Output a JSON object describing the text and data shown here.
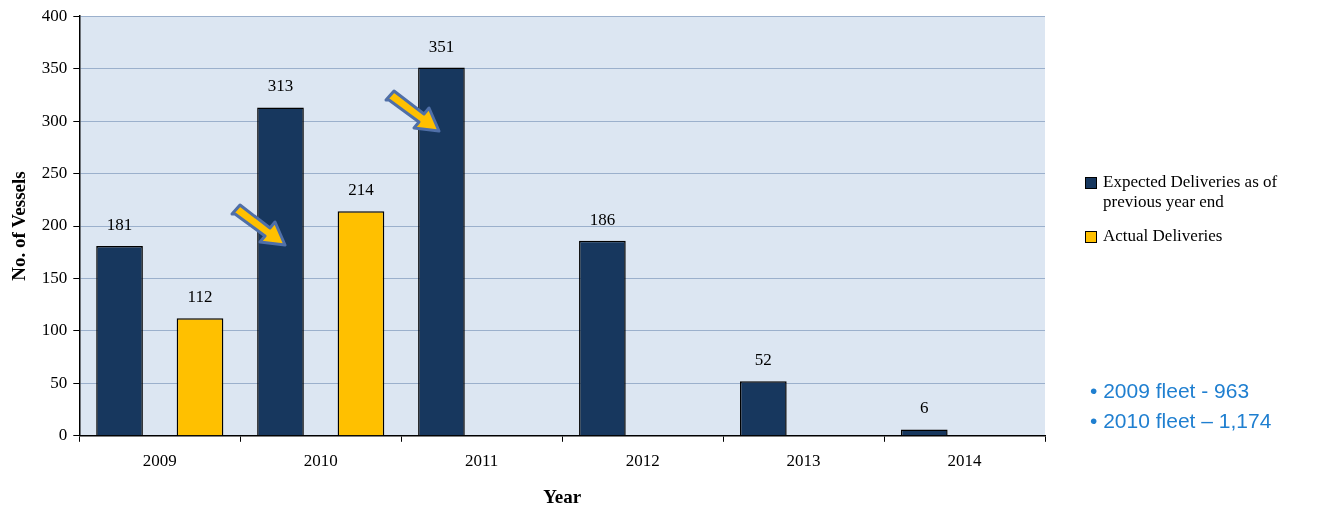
{
  "chart_data": {
    "type": "bar",
    "xlabel": "Year",
    "ylabel": "No. of Vessels",
    "categories": [
      "2009",
      "2010",
      "2011",
      "2012",
      "2013",
      "2014"
    ],
    "series": [
      {
        "name": "Expected Deliveries as of previous year end",
        "color": "#17375e",
        "values": [
          181,
          313,
          351,
          186,
          52,
          6
        ]
      },
      {
        "name": "Actual Deliveries",
        "color": "#ffc000",
        "values": [
          112,
          214,
          null,
          null,
          null,
          null
        ]
      }
    ],
    "ylim": [
      0,
      400
    ],
    "yticks": [
      0,
      50,
      100,
      150,
      200,
      250,
      300,
      350,
      400
    ],
    "grid": "y",
    "legend": "right",
    "data_labels": true,
    "annotations": [
      "• 2009 fleet - 963",
      "• 2010 fleet – 1,174"
    ]
  }
}
